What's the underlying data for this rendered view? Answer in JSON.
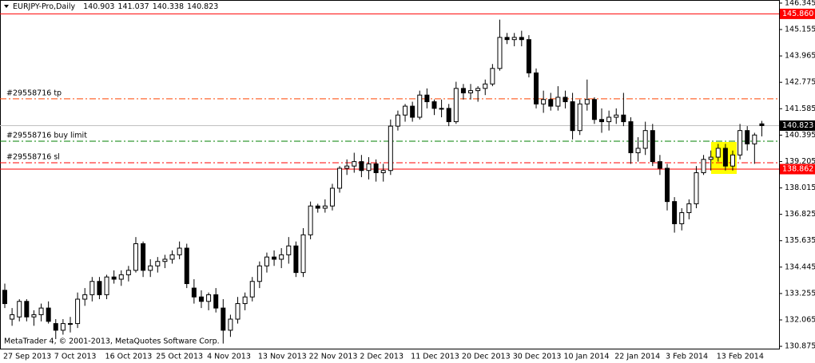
{
  "chart_data": {
    "type": "candlestick",
    "title": "EURJPY-Pro,Daily",
    "title_values": [
      140.903,
      141.037,
      140.338,
      140.823
    ],
    "footer": "MetaTrader 4, © 2001-2013, MetaQuotes Software Corp.",
    "categories": [
      "27 Sep 2013",
      null,
      null,
      null,
      null,
      null,
      null,
      "7 Oct 2013",
      null,
      null,
      null,
      null,
      null,
      null,
      "16 Oct 2013",
      null,
      null,
      null,
      null,
      null,
      null,
      "25 Oct 2013",
      null,
      null,
      null,
      null,
      null,
      null,
      "4 Nov 2013",
      null,
      null,
      null,
      null,
      null,
      null,
      "13 Nov 2013",
      null,
      null,
      null,
      null,
      null,
      null,
      "22 Nov 2013",
      null,
      null,
      null,
      null,
      null,
      null,
      "2 Dec 2013",
      null,
      null,
      null,
      null,
      null,
      null,
      "11 Dec 2013",
      null,
      null,
      null,
      null,
      null,
      null,
      "20 Dec 2013",
      null,
      null,
      null,
      null,
      null,
      null,
      "30 Dec 2013",
      null,
      null,
      null,
      null,
      null,
      null,
      "10 Jan 2014",
      null,
      null,
      null,
      null,
      null,
      null,
      "22 Jan 2014",
      null,
      null,
      null,
      null,
      null,
      null,
      "3 Feb 2014",
      null,
      null,
      null,
      null,
      null,
      null,
      "13 Feb 2014",
      null,
      null,
      null,
      null,
      null,
      null
    ],
    "open": [
      133.4,
      132.1,
      132.2,
      132.9,
      132.2,
      132.3,
      132.6,
      131.9,
      131.6,
      131.9,
      131.9,
      133.0,
      133.2,
      133.8,
      133.2,
      134.0,
      133.9,
      134.1,
      134.3,
      135.5,
      134.3,
      134.5,
      134.7,
      134.8,
      135.0,
      135.3,
      133.5,
      133.1,
      132.9,
      133.2,
      132.6,
      131.6,
      132.1,
      132.8,
      133.1,
      133.8,
      134.5,
      134.9,
      134.8,
      135.0,
      135.4,
      134.2,
      135.9,
      137.2,
      137.1,
      137.2,
      138.0,
      138.9,
      139.0,
      139.2,
      138.8,
      139.1,
      138.7,
      138.8,
      140.8,
      141.3,
      141.7,
      141.2,
      142.2,
      141.9,
      141.6,
      141.6,
      141.0,
      142.5,
      142.3,
      142.4,
      142.5,
      142.7,
      143.4,
      144.8,
      144.7,
      144.8,
      144.7,
      143.2,
      141.8,
      142.0,
      141.7,
      142.1,
      141.9,
      140.6,
      141.8,
      142.0,
      141.1,
      141.0,
      141.2,
      141.3,
      141.0,
      139.6,
      139.8,
      140.6,
      139.2,
      138.9,
      137.4,
      136.4,
      136.9,
      137.3,
      138.7,
      139.3,
      139.4,
      139.8,
      139.0,
      139.5,
      140.6,
      140.0,
      140.903
    ],
    "high": [
      133.7,
      132.6,
      133.0,
      133.0,
      132.5,
      132.8,
      132.9,
      132.1,
      132.1,
      132.2,
      133.3,
      133.5,
      134.0,
      134.0,
      134.1,
      134.3,
      134.3,
      134.5,
      135.8,
      135.6,
      134.8,
      134.9,
      135.0,
      135.2,
      135.6,
      135.5,
      133.9,
      133.4,
      133.3,
      133.5,
      133.0,
      132.3,
      133.1,
      133.3,
      134.0,
      134.7,
      135.1,
      135.2,
      135.3,
      135.8,
      135.6,
      136.2,
      137.4,
      137.3,
      137.5,
      138.2,
      139.0,
      139.3,
      139.6,
      139.5,
      139.4,
      139.3,
      139.1,
      141.1,
      141.5,
      141.8,
      141.9,
      142.4,
      142.5,
      142.0,
      142.0,
      141.8,
      142.8,
      142.7,
      142.7,
      142.6,
      142.9,
      143.6,
      145.6,
      145.0,
      145.0,
      145.1,
      144.9,
      143.4,
      142.4,
      142.3,
      142.6,
      142.4,
      142.3,
      142.0,
      142.9,
      142.1,
      141.6,
      141.5,
      141.6,
      142.3,
      141.2,
      140.3,
      141.0,
      140.9,
      139.5,
      139.1,
      137.6,
      137.1,
      137.5,
      139.0,
      139.5,
      139.7,
      140.0,
      140.0,
      139.7,
      140.9,
      140.8,
      140.5,
      141.037
    ],
    "low": [
      132.6,
      131.8,
      132.0,
      132.0,
      131.8,
      132.0,
      131.9,
      131.2,
      131.4,
      131.5,
      131.7,
      132.7,
      132.9,
      133.0,
      133.0,
      133.7,
      133.6,
      133.8,
      134.2,
      134.0,
      134.0,
      134.2,
      134.4,
      134.6,
      134.8,
      133.5,
      132.8,
      132.6,
      132.5,
      132.4,
      131.0,
      131.3,
      131.9,
      132.5,
      132.9,
      133.5,
      134.2,
      134.5,
      134.4,
      134.6,
      134.0,
      134.0,
      135.7,
      136.9,
      136.9,
      137.0,
      137.8,
      138.6,
      138.7,
      138.5,
      138.4,
      138.3,
      138.3,
      138.6,
      140.6,
      141.0,
      141.0,
      141.1,
      141.6,
      141.3,
      141.2,
      140.8,
      140.9,
      142.0,
      142.0,
      141.9,
      142.2,
      142.6,
      143.3,
      144.5,
      144.4,
      144.4,
      143.0,
      141.6,
      141.4,
      141.5,
      141.5,
      141.6,
      140.2,
      140.4,
      141.5,
      140.9,
      140.5,
      140.6,
      140.9,
      140.8,
      139.1,
      139.2,
      139.5,
      139.0,
      138.6,
      137.0,
      136.0,
      136.1,
      136.6,
      137.1,
      138.6,
      138.8,
      139.2,
      138.8,
      138.8,
      139.3,
      139.7,
      139.1,
      140.338
    ],
    "close": [
      132.8,
      132.3,
      132.9,
      132.2,
      132.3,
      132.6,
      132.0,
      131.6,
      131.9,
      131.9,
      133.0,
      133.2,
      133.8,
      133.2,
      134.0,
      133.9,
      134.1,
      134.3,
      135.5,
      134.3,
      134.5,
      134.7,
      134.8,
      135.0,
      135.3,
      133.7,
      133.1,
      132.9,
      133.2,
      132.6,
      131.6,
      132.1,
      132.8,
      133.1,
      133.8,
      134.5,
      134.9,
      134.8,
      135.0,
      135.4,
      134.2,
      135.9,
      137.2,
      137.1,
      137.2,
      138.0,
      138.9,
      139.0,
      139.2,
      138.8,
      139.1,
      138.7,
      138.8,
      140.8,
      141.3,
      141.7,
      141.2,
      142.2,
      141.9,
      141.6,
      141.6,
      141.0,
      142.5,
      142.3,
      142.4,
      142.5,
      142.7,
      143.4,
      144.8,
      144.7,
      144.8,
      144.7,
      143.2,
      141.8,
      142.0,
      141.7,
      142.1,
      141.9,
      140.6,
      141.8,
      142.0,
      141.1,
      141.0,
      141.2,
      141.3,
      141.0,
      139.6,
      139.8,
      140.6,
      139.2,
      138.9,
      137.4,
      136.4,
      136.9,
      137.3,
      138.7,
      139.3,
      139.4,
      139.8,
      139.0,
      139.5,
      140.6,
      140.0,
      140.4,
      140.823
    ],
    "up_color": "#ffffff",
    "down_color": "#000000",
    "ylim": [
      130.77,
      146.45
    ],
    "yticks": [
      130.875,
      132.065,
      133.255,
      134.445,
      135.635,
      136.825,
      138.015,
      139.205,
      140.395,
      141.585,
      142.775,
      143.965,
      145.155,
      146.345
    ],
    "price_lines": [
      {
        "value": 145.86,
        "label": "145.860",
        "color": "#ff0000"
      },
      {
        "value": 140.823,
        "color": "#c0c0c0",
        "box_color": "#000000"
      },
      {
        "value": 138.862,
        "color": "#ff0000"
      }
    ],
    "orders": [
      {
        "name": "#29558716 tp",
        "value": 142.03,
        "color": "#ff4500"
      },
      {
        "name": "#29558716 buy limit",
        "value": 140.12,
        "color": "#008000"
      },
      {
        "name": "#29558716 sl",
        "value": 139.15,
        "color": "#ff0000"
      }
    ]
  }
}
